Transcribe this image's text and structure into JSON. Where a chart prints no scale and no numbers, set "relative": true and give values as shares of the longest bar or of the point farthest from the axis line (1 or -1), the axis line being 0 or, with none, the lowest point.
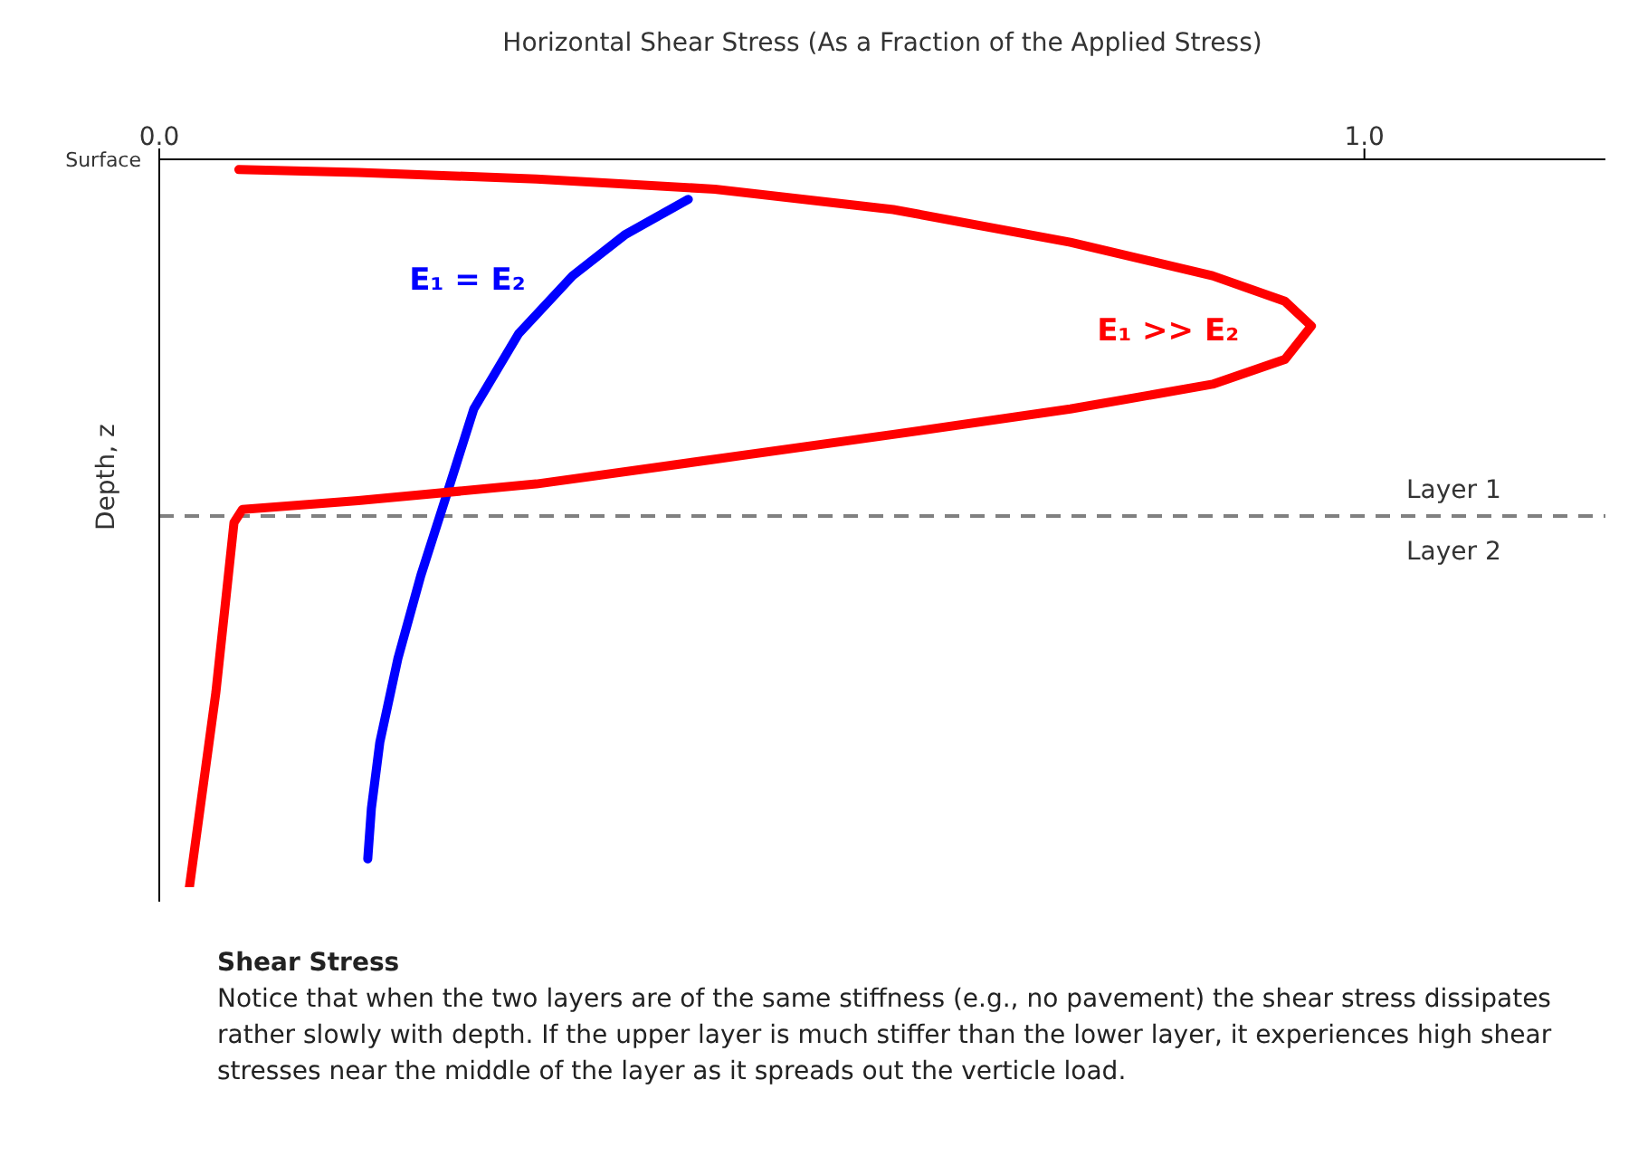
{
  "chart_data": {
    "type": "line",
    "xlabel": "Horizontal Shear Stress (As a Fraction of the Applied Stress)",
    "ylabel": "Depth, z",
    "relative": true,
    "xlim": [
      0,
      1.2
    ],
    "xticks": [
      {
        "value": 0,
        "label": "0.0"
      },
      {
        "value": 1,
        "label": "1.0"
      }
    ],
    "grid": false,
    "legend": false,
    "marker": "none",
    "line_style": "solid",
    "series": [
      {
        "name": "E₁ = E₂",
        "color": "#0000ff",
        "x": [
          0.439,
          0.387,
          0.343,
          0.298,
          0.261,
          0.239,
          0.217,
          0.198,
          0.183,
          0.176,
          0.173
        ],
        "values": [
          -0.055,
          -0.103,
          -0.16,
          -0.24,
          -0.343,
          -0.458,
          -0.572,
          -0.686,
          -0.801,
          -0.892,
          -0.961
        ]
      },
      {
        "name": "E₁ >> E₂",
        "color": "#ff0000",
        "x": [
          0.066,
          0.165,
          0.313,
          0.461,
          0.609,
          0.756,
          0.874,
          0.934,
          0.956,
          0.934,
          0.874,
          0.756,
          0.609,
          0.461,
          0.313,
          0.165,
          0.069,
          0.062,
          0.047,
          0.025
        ],
        "values": [
          -0.014,
          -0.018,
          -0.027,
          -0.041,
          -0.069,
          -0.114,
          -0.16,
          -0.195,
          -0.229,
          -0.275,
          -0.309,
          -0.343,
          -0.378,
          -0.412,
          -0.446,
          -0.469,
          -0.481,
          -0.499,
          -0.732,
          -1
        ]
      }
    ],
    "ref_lines": [
      {
        "axis": "y",
        "value": -0.49,
        "label": "Layer 1",
        "color": "#808080",
        "line_style": "dashed"
      }
    ],
    "annotations": [
      "Surface",
      "Layer 2",
      "Shear Stress",
      "Notice that when the two layers are of the same stiffness (e.g., no pavement) the shear stress dissipates rather slowly with depth.  If the upper layer is much stiffer than the lower layer, it experiences high shear stresses near the middle of the layer as it spreads out the verticle load."
    ]
  }
}
